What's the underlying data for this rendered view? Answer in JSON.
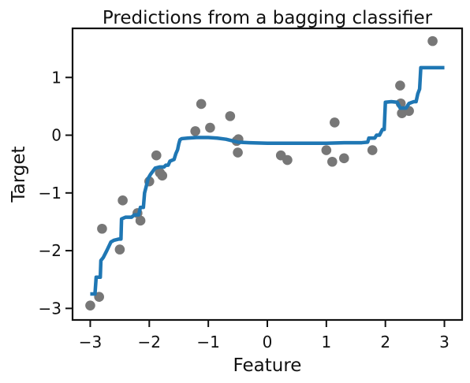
{
  "chart_data": {
    "type": "scatter",
    "title": "Predictions from a bagging classifier",
    "xlabel": "Feature",
    "ylabel": "Target",
    "xlim": [
      -3.3,
      3.3
    ],
    "ylim": [
      -3.2,
      1.85
    ],
    "x_ticks": [
      {
        "value": -3,
        "label": "−3"
      },
      {
        "value": -2,
        "label": "−2"
      },
      {
        "value": -1,
        "label": "−1"
      },
      {
        "value": 0,
        "label": "0"
      },
      {
        "value": 1,
        "label": "1"
      },
      {
        "value": 2,
        "label": "2"
      },
      {
        "value": 3,
        "label": "3"
      }
    ],
    "y_ticks": [
      {
        "value": -3,
        "label": "−3"
      },
      {
        "value": -2,
        "label": "−2"
      },
      {
        "value": -1,
        "label": "−1"
      },
      {
        "value": 0,
        "label": "0"
      },
      {
        "value": 1,
        "label": "1"
      }
    ],
    "grid": false,
    "series": [
      {
        "kind": "scatter",
        "color": "#777777",
        "points": [
          [
            -3.0,
            -2.95
          ],
          [
            -2.85,
            -2.8
          ],
          [
            -2.8,
            -1.62
          ],
          [
            -2.5,
            -1.98
          ],
          [
            -2.45,
            -1.13
          ],
          [
            -2.2,
            -1.35
          ],
          [
            -2.15,
            -1.48
          ],
          [
            -2.0,
            -0.8
          ],
          [
            -1.88,
            -0.35
          ],
          [
            -1.82,
            -0.65
          ],
          [
            -1.78,
            -0.7
          ],
          [
            -1.22,
            0.07
          ],
          [
            -1.12,
            0.54
          ],
          [
            -0.97,
            0.13
          ],
          [
            -0.63,
            0.33
          ],
          [
            -0.52,
            -0.1
          ],
          [
            -0.5,
            -0.3
          ],
          [
            -0.49,
            -0.07
          ],
          [
            0.23,
            -0.35
          ],
          [
            0.34,
            -0.43
          ],
          [
            1.0,
            -0.26
          ],
          [
            1.1,
            -0.46
          ],
          [
            1.14,
            0.22
          ],
          [
            1.3,
            -0.4
          ],
          [
            1.78,
            -0.26
          ],
          [
            2.25,
            0.86
          ],
          [
            2.26,
            0.55
          ],
          [
            2.28,
            0.38
          ],
          [
            2.4,
            0.42
          ],
          [
            2.8,
            1.63
          ]
        ]
      },
      {
        "kind": "line",
        "color": "#1f77b4",
        "points": [
          [
            -3.0,
            -2.75
          ],
          [
            -2.92,
            -2.75
          ],
          [
            -2.9,
            -2.46
          ],
          [
            -2.83,
            -2.46
          ],
          [
            -2.82,
            -2.17
          ],
          [
            -2.78,
            -2.12
          ],
          [
            -2.72,
            -2.0
          ],
          [
            -2.65,
            -1.85
          ],
          [
            -2.6,
            -1.82
          ],
          [
            -2.52,
            -1.8
          ],
          [
            -2.48,
            -1.8
          ],
          [
            -2.47,
            -1.45
          ],
          [
            -2.4,
            -1.42
          ],
          [
            -2.3,
            -1.42
          ],
          [
            -2.25,
            -1.38
          ],
          [
            -2.18,
            -1.38
          ],
          [
            -2.15,
            -1.25
          ],
          [
            -2.1,
            -1.25
          ],
          [
            -2.08,
            -1.0
          ],
          [
            -2.05,
            -0.88
          ],
          [
            -2.02,
            -0.75
          ],
          [
            -1.98,
            -0.68
          ],
          [
            -1.9,
            -0.57
          ],
          [
            -1.82,
            -0.55
          ],
          [
            -1.75,
            -0.55
          ],
          [
            -1.72,
            -0.52
          ],
          [
            -1.68,
            -0.52
          ],
          [
            -1.65,
            -0.45
          ],
          [
            -1.58,
            -0.42
          ],
          [
            -1.55,
            -0.32
          ],
          [
            -1.52,
            -0.25
          ],
          [
            -1.5,
            -0.15
          ],
          [
            -1.48,
            -0.08
          ],
          [
            -1.45,
            -0.06
          ],
          [
            -1.35,
            -0.05
          ],
          [
            -1.2,
            -0.04
          ],
          [
            -1.0,
            -0.04
          ],
          [
            -0.85,
            -0.05
          ],
          [
            -0.7,
            -0.07
          ],
          [
            -0.5,
            -0.12
          ],
          [
            -0.3,
            -0.13
          ],
          [
            0.0,
            -0.14
          ],
          [
            0.5,
            -0.14
          ],
          [
            1.0,
            -0.14
          ],
          [
            1.3,
            -0.13
          ],
          [
            1.6,
            -0.13
          ],
          [
            1.7,
            -0.12
          ],
          [
            1.72,
            -0.05
          ],
          [
            1.82,
            -0.05
          ],
          [
            1.85,
            0.0
          ],
          [
            1.9,
            0.0
          ],
          [
            1.95,
            0.1
          ],
          [
            1.98,
            0.1
          ],
          [
            2.0,
            0.57
          ],
          [
            2.1,
            0.58
          ],
          [
            2.2,
            0.57
          ],
          [
            2.25,
            0.47
          ],
          [
            2.35,
            0.47
          ],
          [
            2.4,
            0.55
          ],
          [
            2.48,
            0.58
          ],
          [
            2.52,
            0.58
          ],
          [
            2.55,
            0.72
          ],
          [
            2.58,
            0.8
          ],
          [
            2.6,
            1.17
          ],
          [
            2.8,
            1.17
          ],
          [
            3.0,
            1.17
          ]
        ]
      }
    ]
  }
}
